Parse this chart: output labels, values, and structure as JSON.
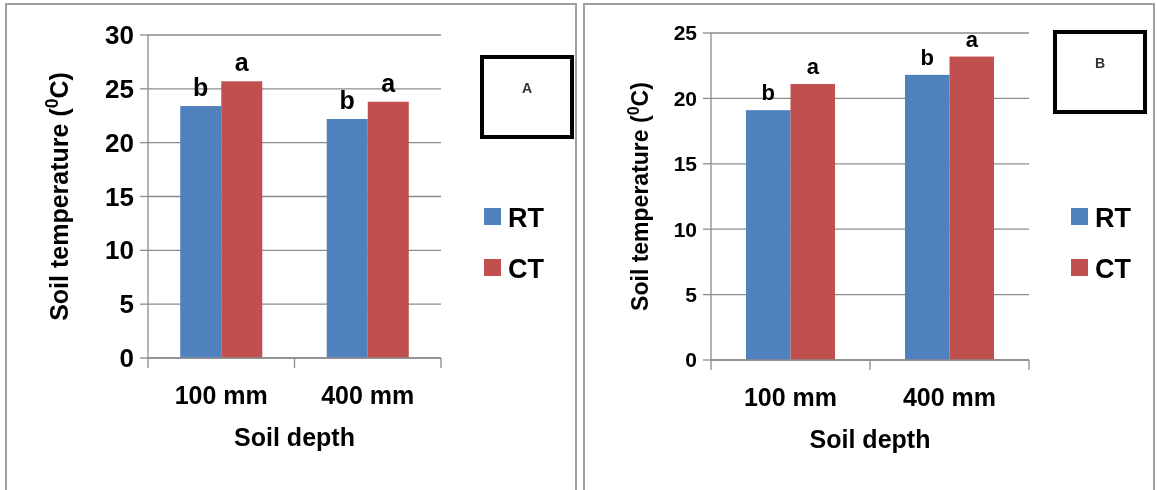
{
  "chart_data": [
    {
      "type": "bar",
      "categories": [
        "100 mm",
        "400 mm"
      ],
      "xlabel": "Soil depth",
      "ylabel": "Soil temperature ($^{0}$C)",
      "ylim": [
        0,
        30
      ],
      "yticks": [
        0,
        5,
        10,
        15,
        20,
        25,
        30
      ],
      "grid": "y",
      "legend": "right",
      "series": [
        {
          "name": "RT",
          "color": "#4f81bd",
          "values": [
            23.4,
            22.2
          ]
        },
        {
          "name": "CT",
          "color": "#c0504d",
          "values": [
            25.7,
            23.8
          ]
        }
      ],
      "annotations": [
        "A",
        "b",
        "a",
        "b",
        "a"
      ]
    },
    {
      "type": "bar",
      "categories": [
        "100 mm",
        "400 mm"
      ],
      "xlabel": "Soil depth",
      "ylabel": "Soil temperature ($^{0}$C)",
      "ylim": [
        0,
        25
      ],
      "yticks": [
        0,
        5,
        10,
        15,
        20,
        25
      ],
      "grid": "y",
      "legend": "right",
      "series": [
        {
          "name": "RT",
          "color": "#4f81bd",
          "values": [
            19.1,
            21.8
          ]
        },
        {
          "name": "CT",
          "color": "#c0504d",
          "values": [
            21.1,
            23.2
          ]
        }
      ],
      "annotations": [
        "B",
        "b",
        "a",
        "b",
        "a"
      ]
    }
  ]
}
